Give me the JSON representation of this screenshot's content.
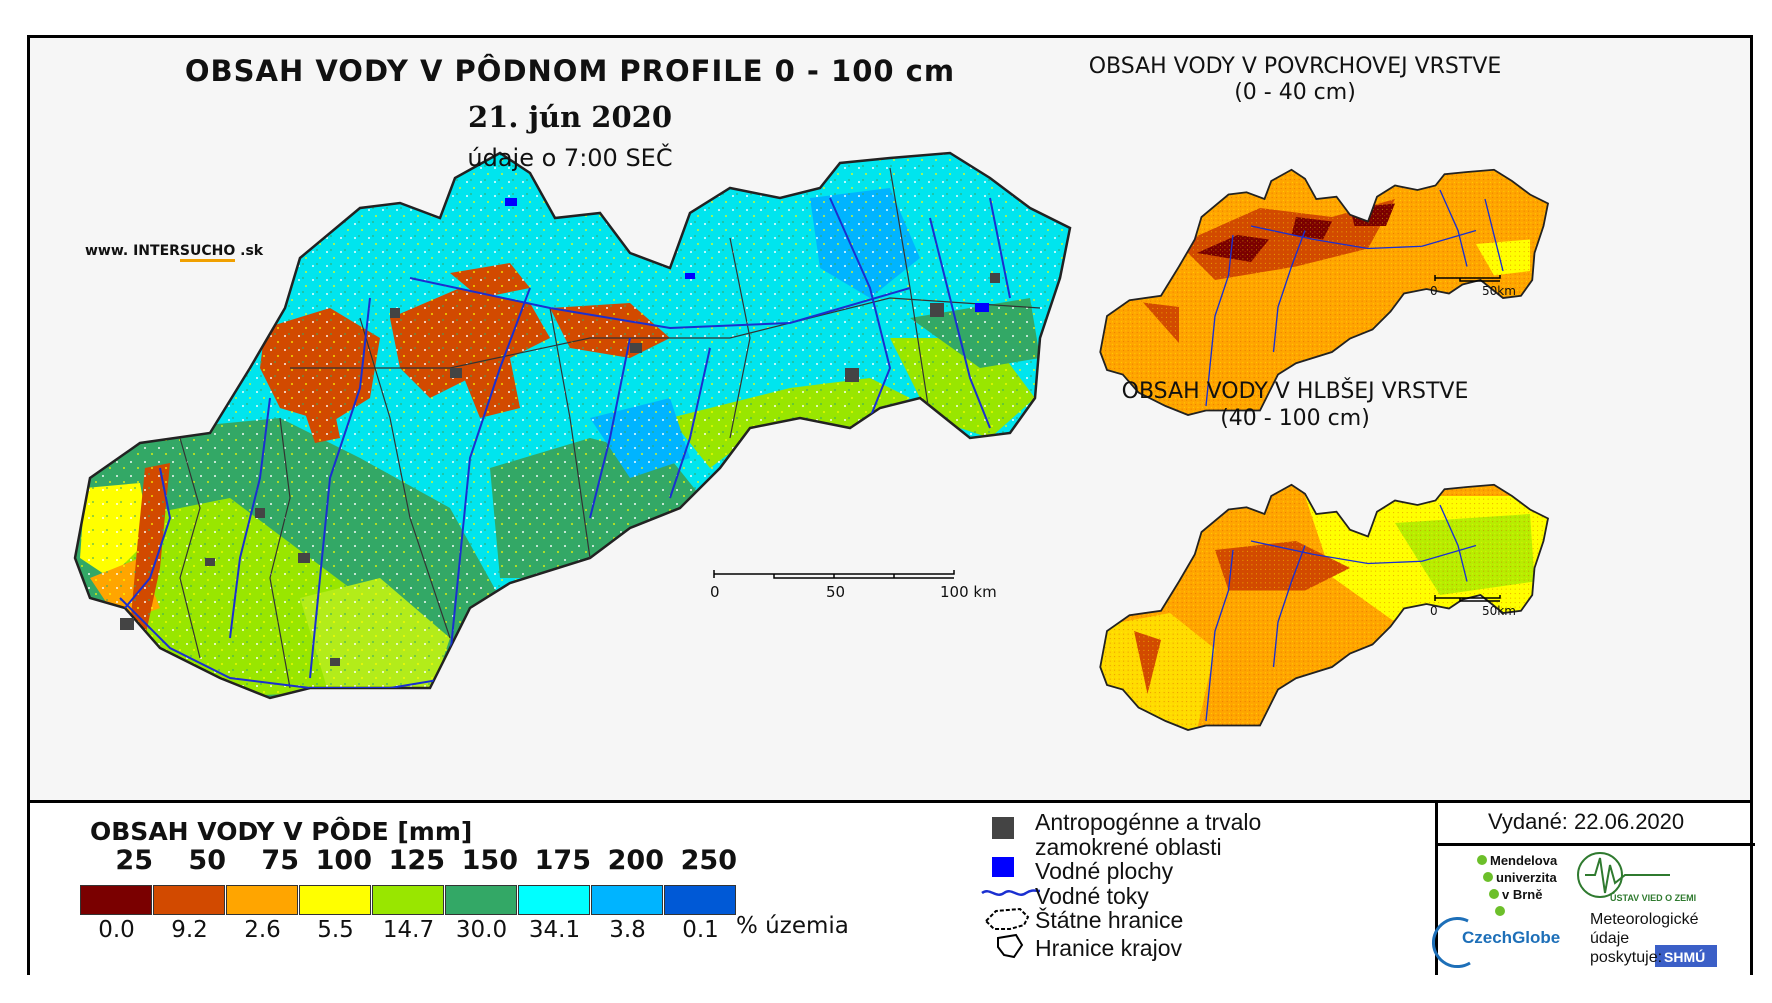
{
  "title": "OBSAH VODY V PÔDNOM PROFILE 0 - 100 cm",
  "date": "21. jún 2020",
  "time_note": "údaje o 7:00 SEČ",
  "website": {
    "prefix": "www. INTER",
    "highlight": "SUCHO",
    "suffix": " .sk"
  },
  "main_scale": {
    "labels": [
      "0",
      "50",
      "100 km"
    ]
  },
  "inset_surface": {
    "title_line1": "OBSAH VODY V POVRCHOVEJ VRSTVE",
    "title_line2": "(0 - 40 cm)",
    "scale_labels": [
      "0",
      "50km"
    ]
  },
  "inset_deep": {
    "title_line1": "OBSAH VODY V HLBŠEJ VRSTVE",
    "title_line2": "(40 - 100 cm)",
    "scale_labels": [
      "0",
      "50km"
    ]
  },
  "legend": {
    "title": "OBSAH VODY V PÔDE [mm]",
    "thresholds": [
      "25",
      "50",
      "75",
      "100",
      "125",
      "150",
      "175",
      "200",
      "250"
    ],
    "classes": [
      {
        "color": "#7a0000",
        "pct": "0.0"
      },
      {
        "color": "#d24a00",
        "pct": "9.2"
      },
      {
        "color": "#ffa500",
        "pct": "2.6"
      },
      {
        "color": "#ffff00",
        "pct": "5.5"
      },
      {
        "color": "#99e600",
        "pct": "14.7"
      },
      {
        "color": "#33a866",
        "pct": "30.0"
      },
      {
        "color": "#00ffff",
        "pct": "34.1"
      },
      {
        "color": "#00b4ff",
        "pct": "3.8"
      },
      {
        "color": "#0059d6",
        "pct": "0.1"
      }
    ],
    "pct_unit": "% územia"
  },
  "symbols": {
    "anthro_line1": "Antropogénne a trvalo",
    "anthro_line2": "zamokrené oblasti",
    "water_bodies": "Vodné plochy",
    "rivers": "Vodné toky",
    "state_border": "Štátne hranice",
    "region_border": "Hranice krajov"
  },
  "issued": "Vydané: 22.06.2020",
  "logos": {
    "mendel_1": "Mendelova",
    "mendel_2": "univerzita",
    "mendel_3": "v Brně",
    "czechglobe": "CzechGlobe",
    "ustav": "ÚSTAV VIED O ZEMI",
    "meteo_1": "Meteorologické",
    "meteo_2": "údaje",
    "meteo_3": "poskytuje:",
    "shmu": "SHMÚ"
  }
}
